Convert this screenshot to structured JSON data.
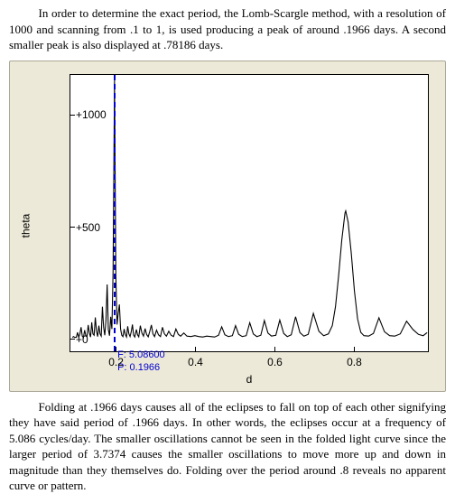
{
  "paragraph_top": "In order to determine the exact period, the Lomb-Scargle method, with a resolution of 1000 and scanning from .1 to 1, is used producing a peak of around .1966 days. A second smaller peak is also displayed at .78186 days.",
  "paragraph_bottom": "Folding at .1966 days causes all of the eclipses to fall on top of each other signifying they have said period of .1966 days. In other words, the eclipses occur at a frequency of 5.086 cycles/day. The smaller oscillations cannot be seen in the folded light curve since the larger period of 3.7374 causes the smaller oscillations to move more up and down in magnitude than they themselves do. Folding over the period around .8 reveals no apparent curve or pattern.",
  "chart": {
    "type": "line-periodogram",
    "panel_bg": "#ece9d8",
    "panel_border": "#aca899",
    "plot_bg": "#ffffff",
    "axis_color": "#000000",
    "line_color": "#000000",
    "line_width": 1.1,
    "cursor_color": "#0000d0",
    "cursor_dash": "4,3",
    "xlabel": "d",
    "ylabel": "theta",
    "xlim": [
      0.085,
      0.99
    ],
    "ylim": [
      -60,
      1180
    ],
    "xticks": [
      0.2,
      0.4,
      0.6,
      0.8
    ],
    "yticks": [
      0,
      500,
      1000
    ],
    "ytick_labels": [
      "+0",
      "+500",
      "+1000"
    ],
    "cursor_x": 0.1966,
    "cursor_labels": [
      "F: 5.08600",
      "P: 0.1966"
    ],
    "label_font": "Arial",
    "label_fontsize": 12,
    "tick_fontsize": 12,
    "cursor_fontsize": 11,
    "series": [
      [
        0.09,
        2
      ],
      [
        0.093,
        6
      ],
      [
        0.096,
        2
      ],
      [
        0.1,
        3
      ],
      [
        0.103,
        25
      ],
      [
        0.106,
        3
      ],
      [
        0.109,
        18
      ],
      [
        0.112,
        48
      ],
      [
        0.115,
        8
      ],
      [
        0.118,
        2
      ],
      [
        0.121,
        35
      ],
      [
        0.124,
        10
      ],
      [
        0.127,
        6
      ],
      [
        0.13,
        58
      ],
      [
        0.133,
        22
      ],
      [
        0.136,
        4
      ],
      [
        0.139,
        70
      ],
      [
        0.142,
        18
      ],
      [
        0.145,
        12
      ],
      [
        0.148,
        92
      ],
      [
        0.151,
        30
      ],
      [
        0.154,
        6
      ],
      [
        0.157,
        55
      ],
      [
        0.16,
        18
      ],
      [
        0.163,
        8
      ],
      [
        0.166,
        140
      ],
      [
        0.169,
        48
      ],
      [
        0.172,
        12
      ],
      [
        0.175,
        80
      ],
      [
        0.178,
        240
      ],
      [
        0.181,
        38
      ],
      [
        0.184,
        10
      ],
      [
        0.187,
        95
      ],
      [
        0.19,
        40
      ],
      [
        0.193,
        300
      ],
      [
        0.1966,
        1155
      ],
      [
        0.2,
        280
      ],
      [
        0.203,
        60
      ],
      [
        0.206,
        110
      ],
      [
        0.209,
        150
      ],
      [
        0.212,
        40
      ],
      [
        0.215,
        12
      ],
      [
        0.218,
        6
      ],
      [
        0.221,
        40
      ],
      [
        0.224,
        15
      ],
      [
        0.227,
        4
      ],
      [
        0.23,
        52
      ],
      [
        0.233,
        18
      ],
      [
        0.236,
        6
      ],
      [
        0.239,
        28
      ],
      [
        0.242,
        60
      ],
      [
        0.245,
        12
      ],
      [
        0.248,
        4
      ],
      [
        0.252,
        38
      ],
      [
        0.255,
        14
      ],
      [
        0.258,
        5
      ],
      [
        0.262,
        55
      ],
      [
        0.266,
        22
      ],
      [
        0.27,
        8
      ],
      [
        0.274,
        42
      ],
      [
        0.278,
        15
      ],
      [
        0.282,
        5
      ],
      [
        0.286,
        30
      ],
      [
        0.29,
        58
      ],
      [
        0.294,
        18
      ],
      [
        0.298,
        6
      ],
      [
        0.303,
        35
      ],
      [
        0.308,
        14
      ],
      [
        0.313,
        6
      ],
      [
        0.318,
        48
      ],
      [
        0.323,
        18
      ],
      [
        0.328,
        8
      ],
      [
        0.334,
        30
      ],
      [
        0.34,
        12
      ],
      [
        0.346,
        6
      ],
      [
        0.352,
        40
      ],
      [
        0.358,
        16
      ],
      [
        0.364,
        8
      ],
      [
        0.372,
        22
      ],
      [
        0.38,
        8
      ],
      [
        0.39,
        6
      ],
      [
        0.4,
        10
      ],
      [
        0.41,
        6
      ],
      [
        0.42,
        4
      ],
      [
        0.43,
        8
      ],
      [
        0.44,
        6
      ],
      [
        0.45,
        4
      ],
      [
        0.46,
        12
      ],
      [
        0.468,
        50
      ],
      [
        0.476,
        14
      ],
      [
        0.485,
        6
      ],
      [
        0.495,
        10
      ],
      [
        0.503,
        55
      ],
      [
        0.511,
        16
      ],
      [
        0.52,
        6
      ],
      [
        0.53,
        10
      ],
      [
        0.539,
        68
      ],
      [
        0.548,
        18
      ],
      [
        0.557,
        6
      ],
      [
        0.567,
        12
      ],
      [
        0.576,
        78
      ],
      [
        0.585,
        22
      ],
      [
        0.594,
        8
      ],
      [
        0.605,
        12
      ],
      [
        0.615,
        80
      ],
      [
        0.625,
        20
      ],
      [
        0.634,
        6
      ],
      [
        0.644,
        14
      ],
      [
        0.655,
        95
      ],
      [
        0.666,
        24
      ],
      [
        0.676,
        8
      ],
      [
        0.687,
        16
      ],
      [
        0.7,
        110
      ],
      [
        0.714,
        30
      ],
      [
        0.726,
        10
      ],
      [
        0.738,
        18
      ],
      [
        0.748,
        55
      ],
      [
        0.756,
        140
      ],
      [
        0.764,
        280
      ],
      [
        0.772,
        440
      ],
      [
        0.78,
        560
      ],
      [
        0.7819,
        570
      ],
      [
        0.788,
        520
      ],
      [
        0.796,
        380
      ],
      [
        0.804,
        210
      ],
      [
        0.812,
        85
      ],
      [
        0.82,
        25
      ],
      [
        0.828,
        10
      ],
      [
        0.84,
        8
      ],
      [
        0.852,
        20
      ],
      [
        0.866,
        90
      ],
      [
        0.88,
        28
      ],
      [
        0.893,
        10
      ],
      [
        0.906,
        8
      ],
      [
        0.92,
        18
      ],
      [
        0.936,
        75
      ],
      [
        0.952,
        38
      ],
      [
        0.966,
        16
      ],
      [
        0.978,
        10
      ],
      [
        0.988,
        24
      ]
    ]
  }
}
